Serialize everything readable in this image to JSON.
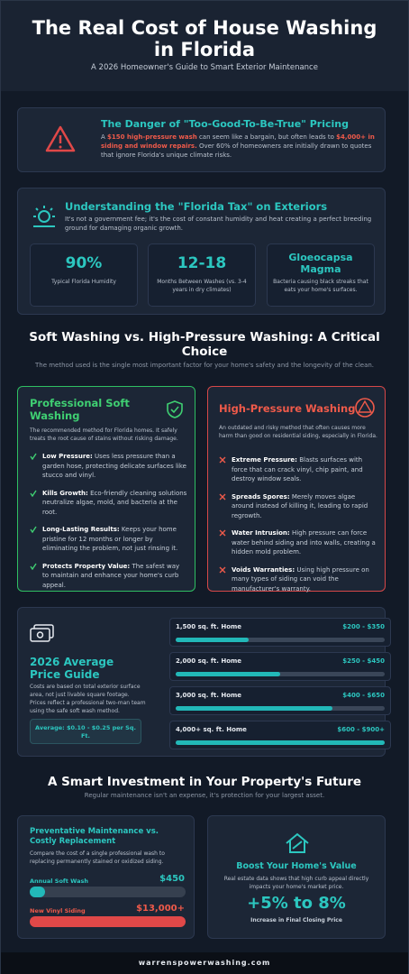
{
  "header": {
    "title": "The Real Cost of House Washing in Florida",
    "subtitle": "A 2026 Homeowner's Guide to Smart Exterior Maintenance"
  },
  "danger": {
    "title": "The Danger of \"Too-Good-To-Be-True\" Pricing",
    "body": [
      "A ",
      "$150 high-pressure wash",
      " can seem like a bargain, but often leads to ",
      "$4,000+ in siding and window repairs.",
      " Over 60% of homeowners are initially drawn to quotes that ignore Florida's unique climate risks."
    ]
  },
  "florida": {
    "title": "Understanding the \"Florida Tax\" on Exteriors",
    "body": "It's not a government fee; it's the cost of constant humidity and heat creating a perfect breeding ground for damaging organic growth.",
    "stats": [
      {
        "value": "90%",
        "label": "Typical Florida Humidity"
      },
      {
        "value": "12-18",
        "label": "Months Between Washes (vs. 3-4 years in dry climates)"
      },
      {
        "value": "Gloeocapsa Magma",
        "label": "Bacteria causing black streaks that eats your home's surfaces."
      }
    ]
  },
  "comparison": {
    "title": "Soft Washing vs. High-Pressure Washing: A Critical Choice",
    "subtitle": "The method used is the single most important factor for your home's safety and the longevity of the clean.",
    "soft": {
      "title": "Professional Soft Washing",
      "intro": "The recommended method for Florida homes. It safely treats the root cause of stains without risking damage.",
      "items": [
        {
          "term": "Low Pressure:",
          "text": " Uses less pressure than a garden hose, protecting delicate surfaces like stucco and vinyl."
        },
        {
          "term": "Kills Growth:",
          "text": " Eco-friendly cleaning solutions neutralize algae, mold, and bacteria at the root."
        },
        {
          "term": "Long-Lasting Results:",
          "text": " Keeps your home pristine for 12 months or longer by eliminating the problem, not just rinsing it."
        },
        {
          "term": "Protects Property Value:",
          "text": " The safest way to maintain and enhance your home's curb appeal."
        }
      ]
    },
    "pressure": {
      "title": "High-Pressure Washing",
      "intro": "An outdated and risky method that often causes more harm than good on residential siding, especially in Florida.",
      "items": [
        {
          "term": "Extreme Pressure:",
          "text": " Blasts surfaces with force that can crack vinyl, chip paint, and destroy window seals."
        },
        {
          "term": "Spreads Spores:",
          "text": " Merely moves algae around instead of killing it, leading to rapid regrowth."
        },
        {
          "term": "Water Intrusion:",
          "text": " High pressure can force water behind siding and into walls, creating a hidden mold problem."
        },
        {
          "term": "Voids Warranties:",
          "text": " Using high pressure on many types of siding can void the manufacturer's warranty."
        }
      ]
    }
  },
  "pricing": {
    "title": "2026 Average Price Guide",
    "body": "Costs are based on total exterior surface area, not just livable square footage. Prices reflect a professional two-man team using the safe soft wash method.",
    "average": "Average: $0.10 - $0.25 per Sq. Ft.",
    "tiers": [
      {
        "size": "1,500 sq. ft. Home",
        "price": "$200 - $350"
      },
      {
        "size": "2,000 sq. ft. Home",
        "price": "$250 - $450"
      },
      {
        "size": "3,000 sq. ft. Home",
        "price": "$400 - $650"
      },
      {
        "size": "4,000+ sq. ft. Home",
        "price": "$600 - $900+"
      }
    ]
  },
  "investment": {
    "title": "A Smart Investment in Your Property's Future",
    "subtitle": "Regular maintenance isn't an expense, it's protection for your largest asset.",
    "maintenance": {
      "title": "Preventative Maintenance vs. Costly Replacement",
      "body": "Compare the cost of a single professional wash to replacing permanently stained or oxidized siding.",
      "rows": [
        {
          "label": "Annual Soft Wash",
          "price": "$450"
        },
        {
          "label": "New Vinyl Siding",
          "price": "$13,000+"
        }
      ]
    },
    "value": {
      "title": "Boost Your Home's Value",
      "body": "Real estate data shows that high curb appeal directly impacts your home's market price.",
      "stat": "+5% to 8%",
      "stat_label": "Increase in Final Closing Price"
    }
  },
  "footer": "warrenspowerwashing.com"
}
